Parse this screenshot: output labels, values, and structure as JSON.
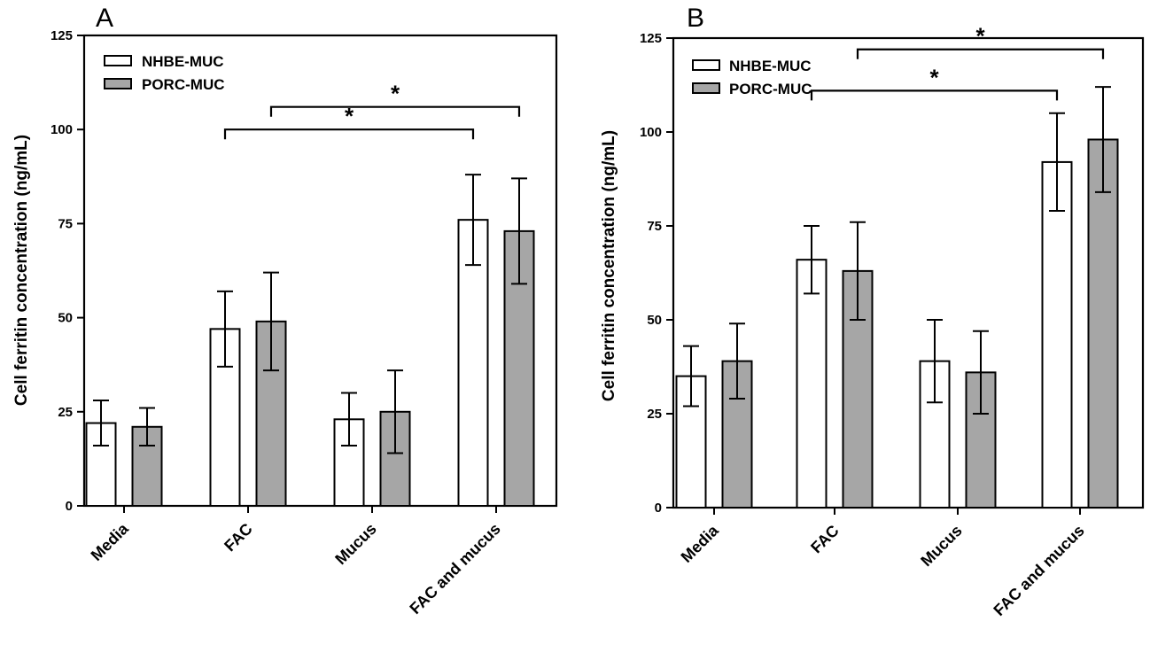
{
  "chart_data": [
    {
      "panel": "A",
      "type": "bar",
      "ylabel": "Cell ferritin concentration (ng/mL)",
      "ylim": [
        0,
        125
      ],
      "yticks": [
        0,
        25,
        50,
        75,
        100,
        125
      ],
      "categories": [
        "Media",
        "FAC",
        "Mucus",
        "FAC and mucus"
      ],
      "series": [
        {
          "name": "NHBE-MUC",
          "color": "#ffffff",
          "values": [
            22,
            47,
            23,
            76
          ],
          "errors": [
            6,
            10,
            7,
            12
          ]
        },
        {
          "name": "PORC-MUC",
          "color": "#a6a6a6",
          "values": [
            21,
            49,
            25,
            73
          ],
          "errors": [
            5,
            13,
            11,
            14
          ]
        }
      ],
      "significance": [
        {
          "from": "FAC / NHBE-MUC",
          "to": "FAC and mucus / NHBE-MUC",
          "label": "*",
          "level": 100
        },
        {
          "from": "FAC / PORC-MUC",
          "to": "FAC and mucus / PORC-MUC",
          "label": "*",
          "level": 106
        }
      ],
      "legend": "top-left"
    },
    {
      "panel": "B",
      "type": "bar",
      "ylabel": "Cell ferritin concentration (ng/mL)",
      "ylim": [
        0,
        125
      ],
      "yticks": [
        0,
        25,
        50,
        75,
        100,
        125
      ],
      "categories": [
        "Media",
        "FAC",
        "Mucus",
        "FAC and mucus"
      ],
      "series": [
        {
          "name": "NHBE-MUC",
          "color": "#ffffff",
          "values": [
            35,
            66,
            39,
            92
          ],
          "errors": [
            8,
            9,
            11,
            13
          ]
        },
        {
          "name": "PORC-MUC",
          "color": "#a6a6a6",
          "values": [
            39,
            63,
            36,
            98
          ],
          "errors": [
            10,
            13,
            11,
            14
          ]
        }
      ],
      "significance": [
        {
          "from": "FAC / NHBE-MUC",
          "to": "FAC and mucus / NHBE-MUC",
          "label": "*",
          "level": 111
        },
        {
          "from": "FAC / PORC-MUC",
          "to": "FAC and mucus / PORC-MUC",
          "label": "*",
          "level": 122
        }
      ],
      "legend": "top-left"
    }
  ]
}
